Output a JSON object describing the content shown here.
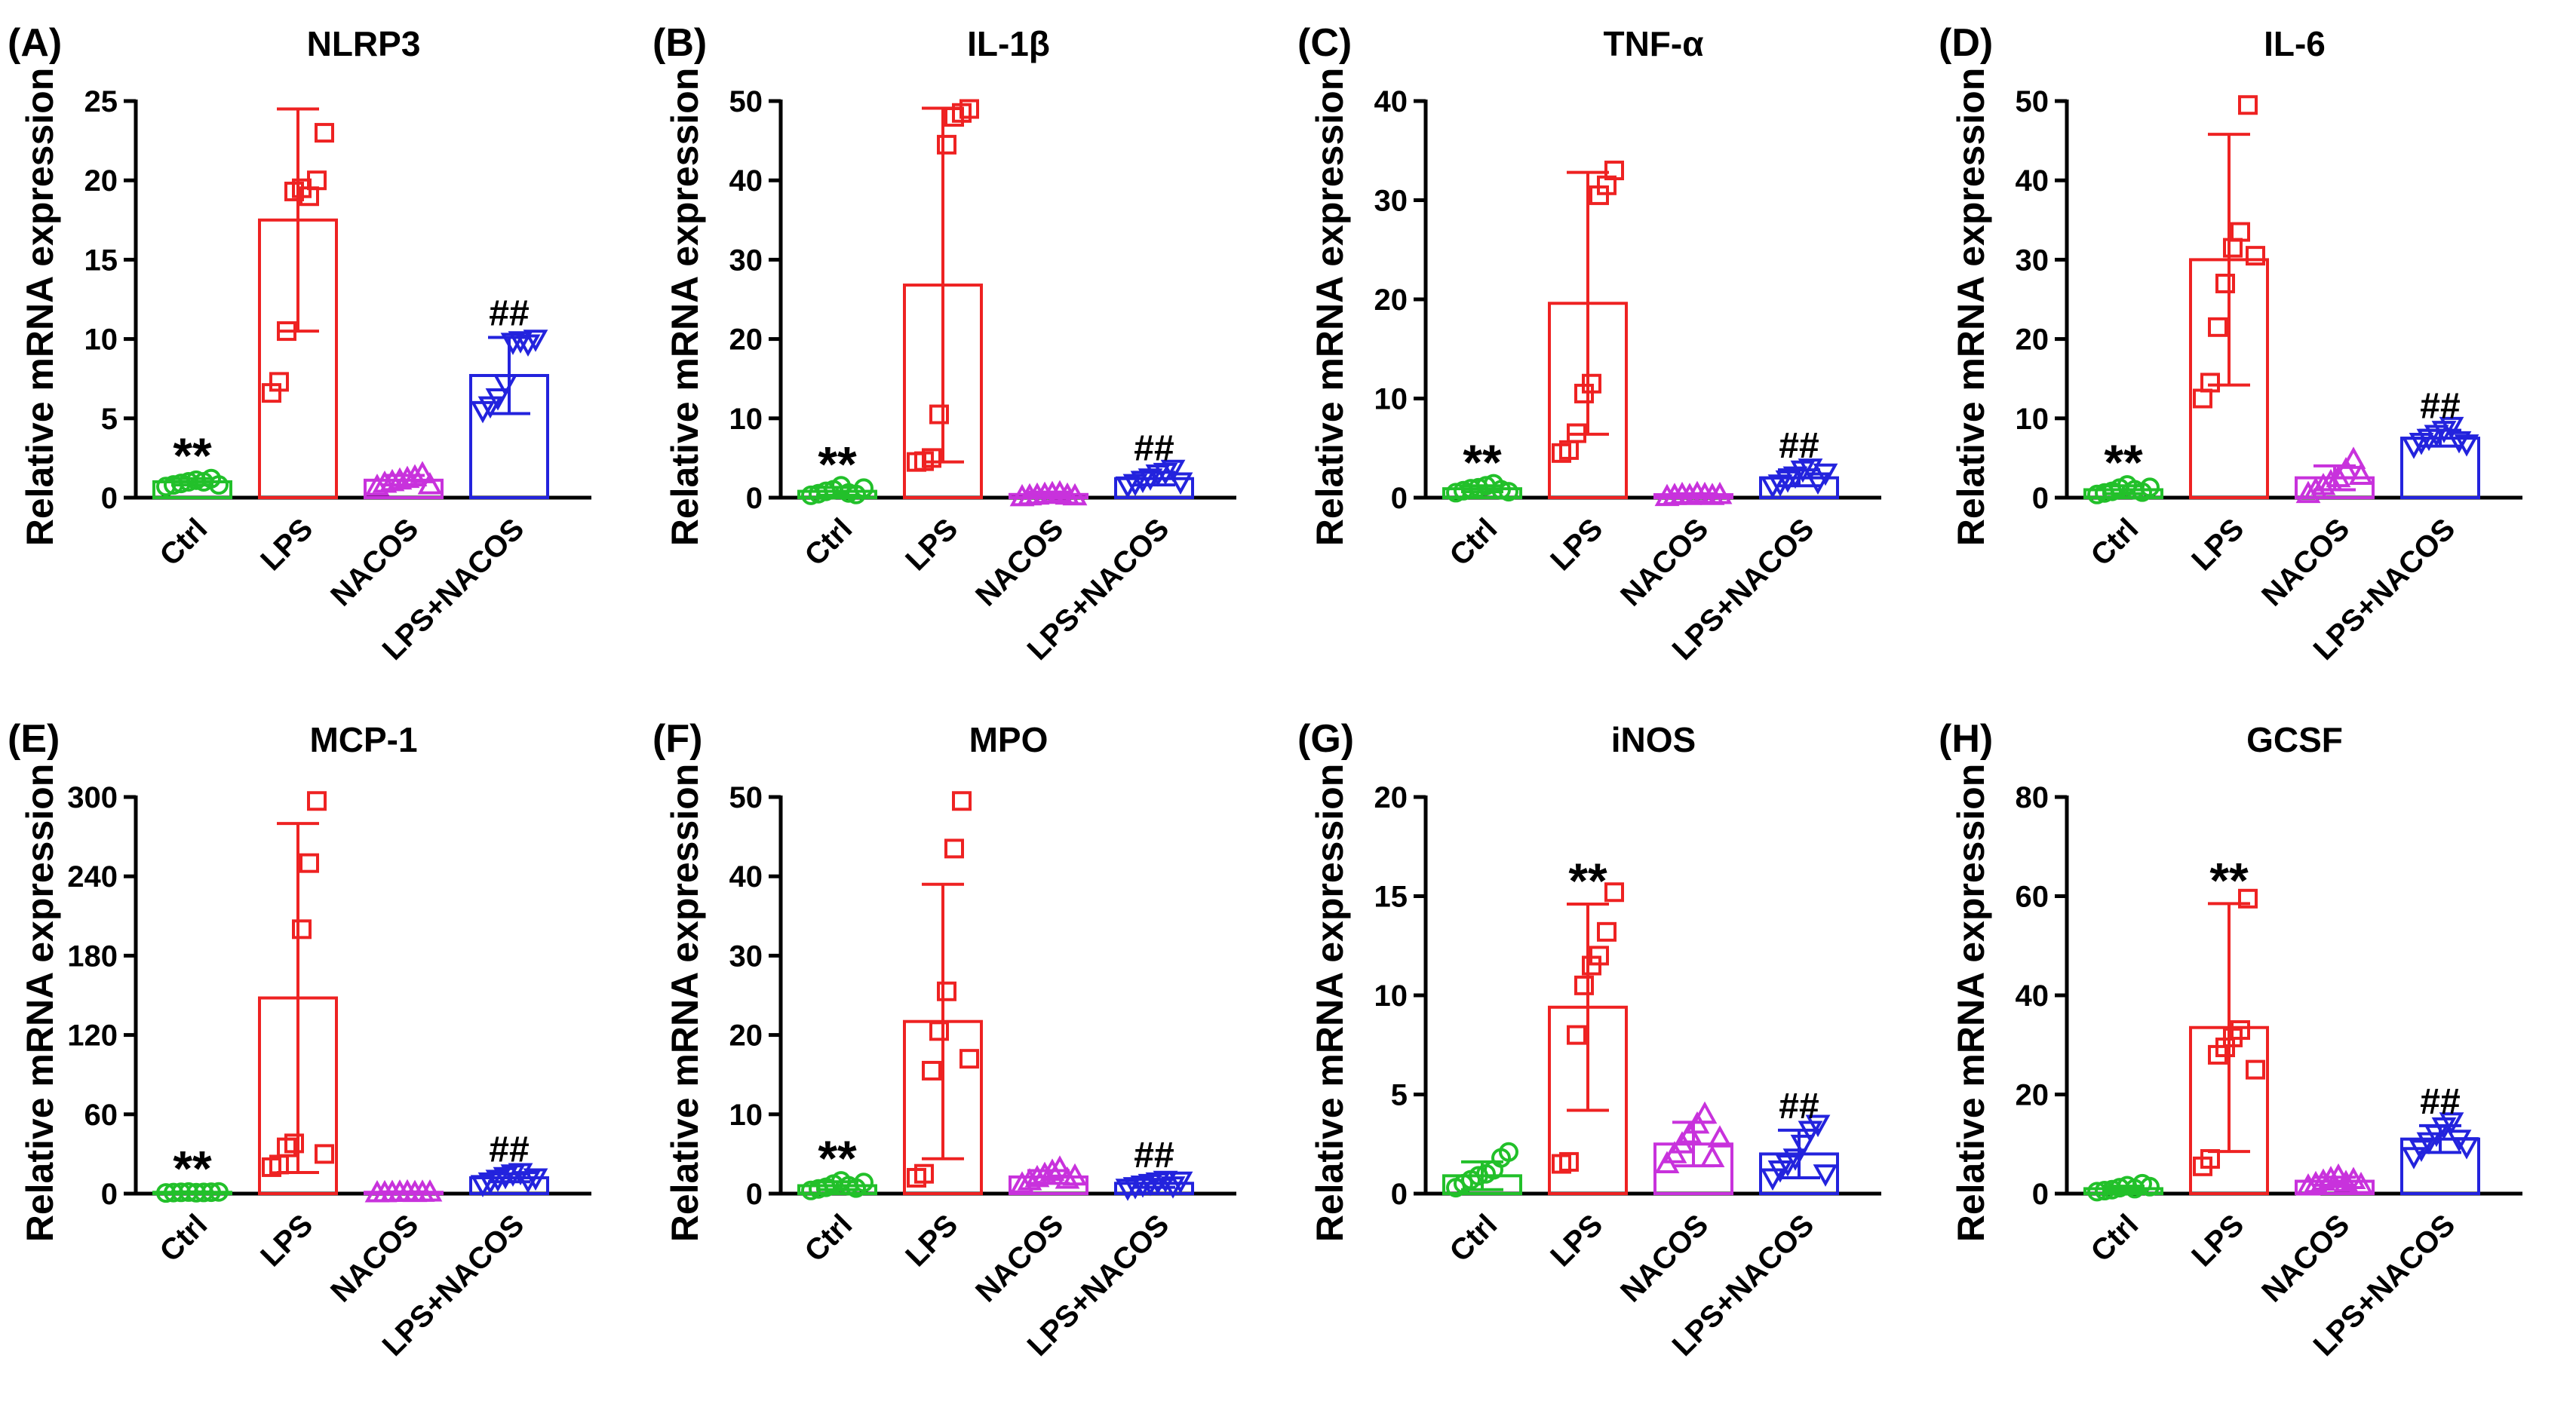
{
  "figure": {
    "y_axis_label": "Relative mRNA expression",
    "groups": [
      "Ctrl",
      "LPS",
      "NACOS",
      "LPS+NACOS"
    ],
    "colors": {
      "Ctrl": "#22c02a",
      "LPS": "#ee2222",
      "NACOS": "#c832dc",
      "LPS+NACOS": "#2323dd"
    },
    "markers": {
      "Ctrl": "circle",
      "LPS": "square",
      "NACOS": "triangle-up",
      "LPS+NACOS": "triangle-down"
    }
  },
  "chart_data": [
    {
      "type": "bar",
      "panel": "(A)",
      "title": "NLRP3",
      "ylabel": "Relative mRNA expression",
      "categories": [
        "Ctrl",
        "LPS",
        "NACOS",
        "LPS+NACOS"
      ],
      "ylim": [
        0,
        25
      ],
      "yticks": [
        0,
        5,
        10,
        15,
        20,
        25
      ],
      "means": [
        1.0,
        17.5,
        1.1,
        7.7
      ],
      "sd": [
        0.2,
        7.0,
        0.3,
        2.4
      ],
      "points": [
        [
          0.7,
          0.8,
          0.9,
          1.0,
          1.1,
          1.0,
          1.2,
          0.8
        ],
        [
          6.6,
          7.3,
          10.5,
          19.3,
          19.5,
          19.0,
          20.0,
          23.0
        ],
        [
          0.7,
          0.9,
          1.0,
          1.1,
          1.2,
          1.3,
          1.5,
          0.8
        ],
        [
          5.5,
          5.8,
          6.3,
          7.2,
          9.8,
          9.9,
          9.7,
          10.0
        ]
      ],
      "annotations": [
        "**",
        "",
        "",
        "##"
      ]
    },
    {
      "type": "bar",
      "panel": "(B)",
      "title": "IL-1β",
      "ylabel": "Relative mRNA expression",
      "categories": [
        "Ctrl",
        "LPS",
        "NACOS",
        "LPS+NACOS"
      ],
      "ylim": [
        0,
        50
      ],
      "yticks": [
        0,
        10,
        20,
        30,
        40,
        50
      ],
      "means": [
        0.8,
        26.8,
        0.4,
        2.4
      ],
      "sd": [
        0.5,
        22.3,
        0.3,
        0.8
      ],
      "points": [
        [
          0.3,
          0.5,
          0.8,
          1.0,
          1.5,
          0.6,
          0.4,
          1.2
        ],
        [
          4.5,
          4.6,
          5.0,
          10.5,
          44.5,
          48.0,
          48.5,
          49.0
        ],
        [
          0.1,
          0.2,
          0.3,
          0.4,
          0.5,
          0.6,
          0.3,
          0.2
        ],
        [
          1.5,
          1.8,
          2.2,
          2.5,
          3.0,
          3.2,
          3.6,
          2.0
        ]
      ],
      "annotations": [
        "**",
        "",
        "",
        "##"
      ]
    },
    {
      "type": "bar",
      "panel": "(C)",
      "title": "TNF-α",
      "ylabel": "Relative mRNA expression",
      "categories": [
        "Ctrl",
        "LPS",
        "NACOS",
        "LPS+NACOS"
      ],
      "ylim": [
        0,
        40
      ],
      "yticks": [
        0,
        10,
        20,
        30,
        40
      ],
      "means": [
        0.9,
        19.6,
        0.3,
        2.0
      ],
      "sd": [
        0.3,
        13.2,
        0.1,
        0.8
      ],
      "points": [
        [
          0.5,
          0.7,
          0.9,
          1.0,
          1.2,
          1.4,
          0.8,
          0.6
        ],
        [
          4.5,
          4.8,
          6.5,
          10.5,
          11.5,
          30.5,
          31.5,
          33.0
        ],
        [
          0.1,
          0.2,
          0.3,
          0.2,
          0.4,
          0.3,
          0.2,
          0.3
        ],
        [
          1.2,
          1.4,
          1.8,
          2.2,
          2.8,
          3.0,
          1.6,
          2.5
        ]
      ],
      "annotations": [
        "**",
        "",
        "",
        "##"
      ]
    },
    {
      "type": "bar",
      "panel": "(D)",
      "title": "IL-6",
      "ylabel": "Relative mRNA expression",
      "categories": [
        "Ctrl",
        "LPS",
        "NACOS",
        "LPS+NACOS"
      ],
      "ylim": [
        0,
        50
      ],
      "yticks": [
        0,
        10,
        20,
        30,
        40,
        50
      ],
      "means": [
        1.0,
        30.0,
        2.5,
        7.5
      ],
      "sd": [
        0.5,
        15.8,
        1.5,
        1.0
      ],
      "points": [
        [
          0.4,
          0.6,
          0.8,
          1.2,
          1.6,
          1.0,
          0.7,
          1.3
        ],
        [
          12.5,
          14.5,
          21.5,
          27.0,
          31.5,
          33.5,
          49.5,
          30.5
        ],
        [
          0.5,
          1.0,
          1.5,
          2.0,
          2.5,
          3.5,
          4.8,
          2.8
        ],
        [
          6.5,
          7.0,
          7.5,
          8.0,
          8.5,
          9.0,
          7.2,
          6.8
        ]
      ],
      "annotations": [
        "**",
        "",
        "",
        "##"
      ]
    },
    {
      "type": "bar",
      "panel": "(E)",
      "title": "MCP-1",
      "ylabel": "Relative mRNA expression",
      "categories": [
        "Ctrl",
        "LPS",
        "NACOS",
        "LPS+NACOS"
      ],
      "ylim": [
        0,
        300
      ],
      "yticks": [
        0,
        60,
        120,
        180,
        240,
        300
      ],
      "means": [
        1.0,
        148.0,
        1.0,
        12.0
      ],
      "sd": [
        0.3,
        132.0,
        0.3,
        3.0
      ],
      "points": [
        [
          0.5,
          0.8,
          1.0,
          1.2,
          0.7,
          0.9,
          1.1,
          1.3
        ],
        [
          20.0,
          22.0,
          35.0,
          38.0,
          200.0,
          250.0,
          297.0,
          30.0
        ],
        [
          0.5,
          0.6,
          0.8,
          1.0,
          1.2,
          0.7,
          0.9,
          1.1
        ],
        [
          7.0,
          9.0,
          11.0,
          13.0,
          15.0,
          16.0,
          10.0,
          12.0
        ]
      ],
      "annotations": [
        "**",
        "",
        "",
        "##"
      ]
    },
    {
      "type": "bar",
      "panel": "(F)",
      "title": "MPO",
      "ylabel": "Relative mRNA expression",
      "categories": [
        "Ctrl",
        "LPS",
        "NACOS",
        "LPS+NACOS"
      ],
      "ylim": [
        0,
        50
      ],
      "yticks": [
        0,
        10,
        20,
        30,
        40,
        50
      ],
      "means": [
        1.0,
        21.7,
        2.1,
        1.3
      ],
      "sd": [
        0.5,
        17.3,
        0.8,
        0.5
      ],
      "points": [
        [
          0.4,
          0.6,
          0.8,
          1.2,
          1.6,
          1.0,
          0.7,
          1.4
        ],
        [
          2.0,
          2.5,
          15.5,
          20.5,
          25.5,
          43.5,
          49.5,
          17.0
        ],
        [
          1.2,
          1.6,
          2.0,
          2.4,
          2.8,
          3.2,
          1.8,
          2.2
        ],
        [
          0.7,
          0.9,
          1.1,
          1.3,
          1.5,
          1.7,
          1.0,
          1.6
        ]
      ],
      "annotations": [
        "**",
        "",
        "",
        "##"
      ]
    },
    {
      "type": "bar",
      "panel": "(G)",
      "title": "iNOS",
      "ylabel": "Relative mRNA expression",
      "categories": [
        "Ctrl",
        "LPS",
        "NACOS",
        "LPS+NACOS"
      ],
      "ylim": [
        0,
        20
      ],
      "yticks": [
        0,
        5,
        10,
        15,
        20
      ],
      "means": [
        0.9,
        9.4,
        2.5,
        2.0
      ],
      "sd": [
        0.7,
        5.2,
        1.1,
        1.2
      ],
      "points": [
        [
          0.3,
          0.5,
          0.7,
          0.9,
          1.0,
          1.2,
          1.8,
          2.1
        ],
        [
          1.5,
          1.6,
          8.0,
          10.5,
          11.5,
          12.0,
          13.2,
          15.2
        ],
        [
          1.5,
          2.0,
          2.5,
          3.0,
          3.5,
          4.0,
          1.8,
          2.8
        ],
        [
          0.8,
          1.2,
          1.5,
          1.8,
          2.5,
          3.2,
          3.5,
          1.0
        ]
      ],
      "annotations": [
        "",
        "**",
        "",
        "##"
      ]
    },
    {
      "type": "bar",
      "panel": "(H)",
      "title": "GCSF",
      "ylabel": "Relative mRNA expression",
      "categories": [
        "Ctrl",
        "LPS",
        "NACOS",
        "LPS+NACOS"
      ],
      "ylim": [
        0,
        80
      ],
      "yticks": [
        0,
        20,
        40,
        60,
        80
      ],
      "means": [
        1.0,
        33.5,
        2.5,
        11.0
      ],
      "sd": [
        0.5,
        25.0,
        0.8,
        2.7
      ],
      "points": [
        [
          0.4,
          0.6,
          0.8,
          1.2,
          1.6,
          1.0,
          2.0,
          1.4
        ],
        [
          5.5,
          7.0,
          28.0,
          29.5,
          31.5,
          33.0,
          59.5,
          25.0
        ],
        [
          1.5,
          2.0,
          2.5,
          3.0,
          3.5,
          2.2,
          2.8,
          1.8
        ],
        [
          7.5,
          9.0,
          10.5,
          12.0,
          13.5,
          14.5,
          11.0,
          9.5
        ]
      ],
      "annotations": [
        "",
        "**",
        "",
        "##"
      ]
    }
  ]
}
